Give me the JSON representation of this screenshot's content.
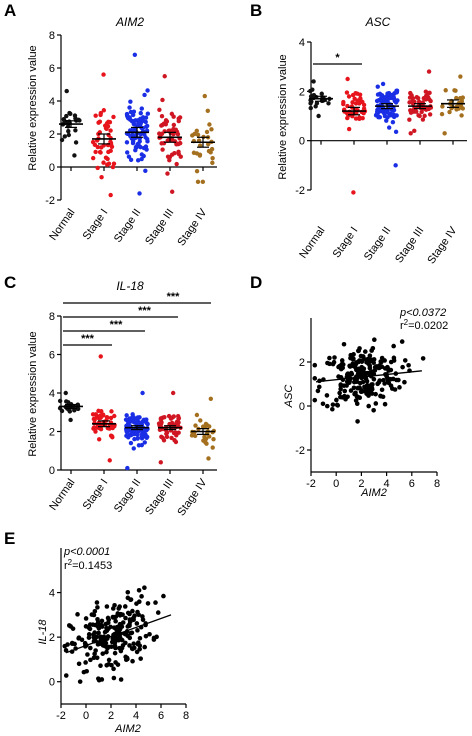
{
  "panels": {
    "A": {
      "letter": "A",
      "title": "AIM2"
    },
    "B": {
      "letter": "B",
      "title": "ASC"
    },
    "C": {
      "letter": "C",
      "title": "IL-18"
    },
    "D": {
      "letter": "D"
    },
    "E": {
      "letter": "E"
    }
  },
  "chart_data": [
    {
      "id": "A",
      "type": "scatter",
      "title": "AIM2",
      "ylabel": "Relative expression value",
      "ylim": [
        -2,
        8
      ],
      "yticks": [
        -2,
        0,
        2,
        4,
        6,
        8
      ],
      "categories": [
        "Normal",
        "Stage I",
        "Stage II",
        "Stage III",
        "Stage IV"
      ],
      "colors": [
        "#111111",
        "#e8141c",
        "#1a2ee6",
        "#cf1622",
        "#a4701f"
      ],
      "mean": [
        2.6,
        1.7,
        2.1,
        1.8,
        1.5
      ],
      "sem": [
        0.2,
        0.3,
        0.3,
        0.3,
        0.3
      ],
      "spread": [
        0.9,
        1.6,
        1.6,
        1.6,
        1.2
      ],
      "n": [
        24,
        48,
        90,
        54,
        28
      ],
      "range": [
        [
          0.7,
          4.6
        ],
        [
          -1.7,
          5.6
        ],
        [
          -1.6,
          6.8
        ],
        [
          -1.5,
          5.5
        ],
        [
          -0.9,
          4.3
        ]
      ],
      "significance": []
    },
    {
      "id": "B",
      "type": "scatter",
      "title": "ASC",
      "ylabel": "Relative expression value",
      "ylim": [
        -2,
        4
      ],
      "yticks": [
        -2,
        0,
        2,
        4
      ],
      "categories": [
        "Normal",
        "Stage I",
        "Stage II",
        "Stage III",
        "Stage IV"
      ],
      "colors": [
        "#111111",
        "#e8141c",
        "#1a2ee6",
        "#cf1622",
        "#a4701f"
      ],
      "mean": [
        1.7,
        1.2,
        1.4,
        1.4,
        1.5
      ],
      "sem": [
        0.1,
        0.15,
        0.1,
        0.1,
        0.15
      ],
      "spread": [
        0.3,
        0.6,
        0.6,
        0.5,
        0.5
      ],
      "n": [
        24,
        48,
        90,
        54,
        28
      ],
      "range": [
        [
          1.0,
          2.4
        ],
        [
          -2.1,
          2.5
        ],
        [
          -1.0,
          2.3
        ],
        [
          0.3,
          2.8
        ],
        [
          0.3,
          2.6
        ]
      ],
      "significance": [
        {
          "from": 0,
          "to": 1,
          "label": "*"
        }
      ]
    },
    {
      "id": "C",
      "type": "scatter",
      "title": "IL-18",
      "ylabel": "Relative expression value",
      "ylim": [
        0,
        8
      ],
      "yticks": [
        0,
        2,
        4,
        6,
        8
      ],
      "categories": [
        "Normal",
        "Stage I",
        "Stage II",
        "Stage III",
        "Stage IV"
      ],
      "colors": [
        "#111111",
        "#e8141c",
        "#1a2ee6",
        "#cf1622",
        "#a4701f"
      ],
      "mean": [
        3.3,
        2.4,
        2.2,
        2.2,
        2.0
      ],
      "sem": [
        0.1,
        0.15,
        0.1,
        0.1,
        0.15
      ],
      "spread": [
        0.35,
        0.7,
        0.6,
        0.6,
        0.6
      ],
      "n": [
        24,
        48,
        90,
        54,
        28
      ],
      "range": [
        [
          2.6,
          4.0
        ],
        [
          0.5,
          5.9
        ],
        [
          0.1,
          4.0
        ],
        [
          0.4,
          4.0
        ],
        [
          0.6,
          3.7
        ]
      ],
      "significance": [
        {
          "from": 0,
          "to": 1,
          "label": "***"
        },
        {
          "from": 0,
          "to": 2,
          "label": "***"
        },
        {
          "from": 0,
          "to": 3,
          "label": "***"
        },
        {
          "from": 0,
          "to": 4,
          "label": "***"
        }
      ]
    },
    {
      "id": "D",
      "type": "scatter",
      "xlabel": "AIM2",
      "ylabel": "ASC",
      "xlim": [
        -2,
        8
      ],
      "ylim": [
        -3,
        4
      ],
      "xticks": [
        -2,
        0,
        2,
        4,
        6,
        8
      ],
      "yticks": [
        -2,
        0,
        2
      ],
      "annotation_p": "p<0.0372",
      "annotation_r2": "r2=0.0202",
      "fit": {
        "x": [
          -1.6,
          6.8
        ],
        "y": [
          1.1,
          1.6
        ]
      },
      "n": 230,
      "x_mean": 2.0,
      "x_sd": 1.6,
      "y_mean": 1.4,
      "y_sd": 0.7
    },
    {
      "id": "E",
      "type": "scatter",
      "xlabel": "AIM2",
      "ylabel": "IL-18",
      "xlim": [
        -2,
        8
      ],
      "ylim": [
        -1,
        6
      ],
      "xticks": [
        -2,
        0,
        2,
        4,
        6,
        8
      ],
      "yticks": [
        0,
        2,
        4
      ],
      "annotation_p": "p<0.0001",
      "annotation_r2": "r2=0.1453",
      "fit": {
        "x": [
          -1.6,
          6.8
        ],
        "y": [
          1.3,
          3.0
        ]
      },
      "n": 230,
      "x_mean": 2.0,
      "x_sd": 1.6,
      "y_mean": 2.2,
      "y_sd": 0.8
    }
  ]
}
